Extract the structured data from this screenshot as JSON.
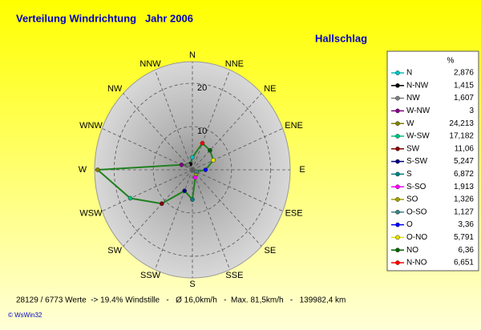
{
  "chart_data": {
    "type": "windrose",
    "title": "Verteilung Windrichtung   Jahr 2006",
    "subtitle": "Hallschlag",
    "legend_header": "%",
    "directions": [
      "N",
      "NNE",
      "NE",
      "ENE",
      "E",
      "ESE",
      "SE",
      "SSE",
      "S",
      "SSW",
      "SW",
      "WSW",
      "W",
      "WNW",
      "NW",
      "NNW"
    ],
    "categories": [
      "N",
      "N-NW",
      "NW",
      "W-NW",
      "W",
      "W-SW",
      "SW",
      "S-SW",
      "S",
      "S-SO",
      "SO",
      "O-SO",
      "O",
      "O-NO",
      "NO",
      "N-NO"
    ],
    "values": [
      2.876,
      1.415,
      1.607,
      3,
      24.213,
      17.182,
      11.06,
      5.247,
      6.872,
      1.913,
      1.326,
      1.127,
      3.36,
      5.791,
      6.36,
      6.651
    ],
    "value_labels": [
      "2,876",
      "1,415",
      "1,607",
      "3",
      "24,213",
      "17,182",
      "11,06",
      "5,247",
      "6,872",
      "1,913",
      "1,326",
      "1,127",
      "3,36",
      "5,791",
      "6,36",
      "6,651"
    ],
    "colors": [
      "#00c0c0",
      "#000000",
      "#808080",
      "#800080",
      "#808000",
      "#00c080",
      "#800000",
      "#000080",
      "#008080",
      "#ff00ff",
      "#a0a000",
      "#408080",
      "#0000ff",
      "#e0e000",
      "#006000",
      "#ff0000"
    ],
    "line_color": "#208020",
    "rlim": [
      0,
      25
    ],
    "rticks": [
      10,
      20
    ],
    "grid": true,
    "footer": "28129 / 6773 Werte  -> 19.4% Windstille   -   Ø 16,0km/h   -  Max. 81,5km/h   -   139982,4 km",
    "credit": "© WsWin32"
  }
}
